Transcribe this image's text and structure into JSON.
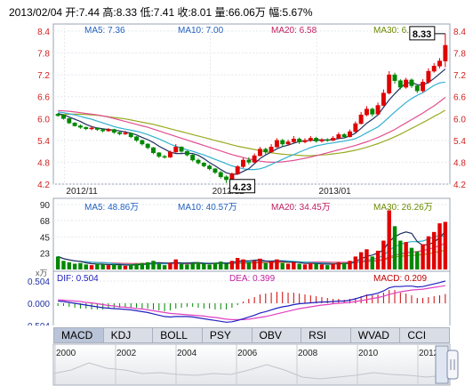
{
  "header": {
    "text": "2013/02/04 开:7.44 高:8.33 低:7.41 收:8.01 量:66.06万 幅:5.67%"
  },
  "price_panel": {
    "ma_labels": [
      {
        "text": "MA5: 7.36",
        "color": "#2060c0"
      },
      {
        "text": "MA10: 7.00",
        "color": "#2060c0"
      },
      {
        "text": "MA20: 6.58",
        "color": "#c02060"
      },
      {
        "text": "MA30: 6.23",
        "color": "#6a8a00"
      }
    ],
    "high_box": "8.33",
    "low_box": "4.23",
    "x_labels": [
      "2012/11",
      "2012/12",
      "2013/01"
    ]
  },
  "volume_panel": {
    "ma_labels": [
      {
        "text": "MA5: 48.86万",
        "color": "#2060c0"
      },
      {
        "text": "MA10: 40.57万",
        "color": "#2060c0"
      },
      {
        "text": "MA20: 34.45万",
        "color": "#c02060"
      },
      {
        "text": "MA30: 26.26万",
        "color": "#6a8a00"
      }
    ],
    "unit": "x万"
  },
  "macd_panel": {
    "dif": "DIF: 0.504",
    "dea": "DEA: 0.399",
    "macd": "MACD: 0.209"
  },
  "tabs": [
    "MACD",
    "KDJ",
    "BOLL",
    "PSY",
    "OBV",
    "RSI",
    "WVAD",
    "CCI"
  ],
  "timeline": {
    "years": [
      "2000",
      "2002",
      "2004",
      "2006",
      "2008",
      "2010",
      "2012"
    ]
  },
  "chart_data": {
    "type": "candlestick",
    "price_axis": {
      "ticks": [
        "4.2",
        "4.8",
        "5.4",
        "6.0",
        "6.6",
        "7.2",
        "7.8",
        "8.4"
      ],
      "ylim": [
        4.2,
        8.4
      ],
      "high_label": "8.33",
      "low_label": "4.23"
    },
    "volume_axis": {
      "ticks": [
        "0",
        "23",
        "45",
        "68",
        "90"
      ],
      "ylim": [
        0,
        90
      ]
    },
    "macd_axis": {
      "ticks": [
        "-0.504",
        "0.000",
        "0.504"
      ],
      "ylim": [
        -0.504,
        0.504
      ]
    },
    "x_labels": [
      "2012/11",
      "2012/12",
      "2013/01"
    ],
    "candles": [
      {
        "o": 6.12,
        "c": 6.08,
        "h": 6.15,
        "l": 6.05
      },
      {
        "o": 6.1,
        "c": 6.0,
        "h": 6.12,
        "l": 5.97
      },
      {
        "o": 6.0,
        "c": 5.88,
        "h": 6.02,
        "l": 5.85
      },
      {
        "o": 5.88,
        "c": 5.8,
        "h": 5.9,
        "l": 5.78
      },
      {
        "o": 5.8,
        "c": 5.76,
        "h": 5.84,
        "l": 5.72
      },
      {
        "o": 5.76,
        "c": 5.72,
        "h": 5.78,
        "l": 5.68
      },
      {
        "o": 5.72,
        "c": 5.74,
        "h": 5.8,
        "l": 5.68
      },
      {
        "o": 5.74,
        "c": 5.7,
        "h": 5.76,
        "l": 5.66
      },
      {
        "o": 5.7,
        "c": 5.66,
        "h": 5.72,
        "l": 5.62
      },
      {
        "o": 5.66,
        "c": 5.7,
        "h": 5.74,
        "l": 5.64
      },
      {
        "o": 5.7,
        "c": 5.62,
        "h": 5.72,
        "l": 5.58
      },
      {
        "o": 5.62,
        "c": 5.58,
        "h": 5.64,
        "l": 5.54
      },
      {
        "o": 5.58,
        "c": 5.6,
        "h": 5.66,
        "l": 5.55
      },
      {
        "o": 5.6,
        "c": 5.5,
        "h": 5.62,
        "l": 5.46
      },
      {
        "o": 5.5,
        "c": 5.4,
        "h": 5.52,
        "l": 5.36
      },
      {
        "o": 5.4,
        "c": 5.3,
        "h": 5.42,
        "l": 5.26
      },
      {
        "o": 5.3,
        "c": 5.2,
        "h": 5.32,
        "l": 5.16
      },
      {
        "o": 5.2,
        "c": 5.06,
        "h": 5.22,
        "l": 5.02
      },
      {
        "o": 5.06,
        "c": 4.96,
        "h": 5.08,
        "l": 4.92
      },
      {
        "o": 4.96,
        "c": 4.94,
        "h": 5.0,
        "l": 4.9
      },
      {
        "o": 4.94,
        "c": 5.08,
        "h": 5.12,
        "l": 4.92
      },
      {
        "o": 5.08,
        "c": 5.22,
        "h": 5.3,
        "l": 5.06
      },
      {
        "o": 5.22,
        "c": 5.1,
        "h": 5.24,
        "l": 5.06
      },
      {
        "o": 5.1,
        "c": 5.0,
        "h": 5.12,
        "l": 4.96
      },
      {
        "o": 5.0,
        "c": 4.86,
        "h": 5.02,
        "l": 4.82
      },
      {
        "o": 4.86,
        "c": 4.78,
        "h": 4.9,
        "l": 4.74
      },
      {
        "o": 4.78,
        "c": 4.7,
        "h": 4.8,
        "l": 4.66
      },
      {
        "o": 4.7,
        "c": 4.62,
        "h": 4.74,
        "l": 4.58
      },
      {
        "o": 4.62,
        "c": 4.52,
        "h": 4.64,
        "l": 4.48
      },
      {
        "o": 4.52,
        "c": 4.4,
        "h": 4.56,
        "l": 4.35
      },
      {
        "o": 4.4,
        "c": 4.32,
        "h": 4.44,
        "l": 4.23
      },
      {
        "o": 4.32,
        "c": 4.48,
        "h": 4.52,
        "l": 4.28
      },
      {
        "o": 4.48,
        "c": 4.68,
        "h": 4.72,
        "l": 4.46
      },
      {
        "o": 4.68,
        "c": 4.86,
        "h": 4.92,
        "l": 4.64
      },
      {
        "o": 4.86,
        "c": 4.8,
        "h": 4.94,
        "l": 4.74
      },
      {
        "o": 4.8,
        "c": 4.98,
        "h": 5.04,
        "l": 4.78
      },
      {
        "o": 4.98,
        "c": 5.16,
        "h": 5.22,
        "l": 4.96
      },
      {
        "o": 5.16,
        "c": 5.08,
        "h": 5.2,
        "l": 5.02
      },
      {
        "o": 5.08,
        "c": 5.22,
        "h": 5.3,
        "l": 5.06
      },
      {
        "o": 5.22,
        "c": 5.4,
        "h": 5.46,
        "l": 5.2
      },
      {
        "o": 5.4,
        "c": 5.3,
        "h": 5.44,
        "l": 5.24
      },
      {
        "o": 5.3,
        "c": 5.36,
        "h": 5.42,
        "l": 5.26
      },
      {
        "o": 5.36,
        "c": 5.44,
        "h": 5.52,
        "l": 5.32
      },
      {
        "o": 5.44,
        "c": 5.36,
        "h": 5.48,
        "l": 5.3
      },
      {
        "o": 5.36,
        "c": 5.4,
        "h": 5.46,
        "l": 5.32
      },
      {
        "o": 5.4,
        "c": 5.46,
        "h": 5.52,
        "l": 5.36
      },
      {
        "o": 5.46,
        "c": 5.38,
        "h": 5.5,
        "l": 5.34
      },
      {
        "o": 5.38,
        "c": 5.42,
        "h": 5.46,
        "l": 5.34
      },
      {
        "o": 5.42,
        "c": 5.4,
        "h": 5.46,
        "l": 5.36
      },
      {
        "o": 5.4,
        "c": 5.46,
        "h": 5.52,
        "l": 5.38
      },
      {
        "o": 5.46,
        "c": 5.56,
        "h": 5.62,
        "l": 5.44
      },
      {
        "o": 5.56,
        "c": 5.5,
        "h": 5.6,
        "l": 5.46
      },
      {
        "o": 5.5,
        "c": 5.64,
        "h": 5.7,
        "l": 5.48
      },
      {
        "o": 5.64,
        "c": 5.86,
        "h": 5.92,
        "l": 5.62
      },
      {
        "o": 5.86,
        "c": 6.1,
        "h": 6.18,
        "l": 5.84
      },
      {
        "o": 6.1,
        "c": 6.26,
        "h": 6.34,
        "l": 6.06
      },
      {
        "o": 6.26,
        "c": 6.12,
        "h": 6.3,
        "l": 6.06
      },
      {
        "o": 6.12,
        "c": 6.36,
        "h": 6.44,
        "l": 6.1
      },
      {
        "o": 6.36,
        "c": 6.7,
        "h": 6.8,
        "l": 6.34
      },
      {
        "o": 6.7,
        "c": 7.2,
        "h": 7.3,
        "l": 6.66
      },
      {
        "o": 7.2,
        "c": 7.04,
        "h": 7.26,
        "l": 6.96
      },
      {
        "o": 7.04,
        "c": 6.86,
        "h": 7.08,
        "l": 6.8
      },
      {
        "o": 6.86,
        "c": 7.06,
        "h": 7.12,
        "l": 6.82
      },
      {
        "o": 7.06,
        "c": 6.9,
        "h": 7.1,
        "l": 6.84
      },
      {
        "o": 6.9,
        "c": 6.76,
        "h": 6.94,
        "l": 6.7
      },
      {
        "o": 6.76,
        "c": 7.0,
        "h": 7.08,
        "l": 6.72
      },
      {
        "o": 7.0,
        "c": 7.3,
        "h": 7.38,
        "l": 6.96
      },
      {
        "o": 7.3,
        "c": 7.44,
        "h": 7.52,
        "l": 7.26
      },
      {
        "o": 7.44,
        "c": 7.58,
        "h": 7.66,
        "l": 7.38
      },
      {
        "o": 7.58,
        "c": 8.01,
        "h": 8.33,
        "l": 7.41
      }
    ],
    "volume": [
      18,
      12,
      10,
      8,
      9,
      7,
      6,
      8,
      7,
      6,
      7,
      6,
      5,
      7,
      8,
      9,
      10,
      12,
      8,
      6,
      9,
      14,
      8,
      7,
      9,
      10,
      8,
      7,
      9,
      11,
      8,
      12,
      16,
      14,
      10,
      12,
      15,
      9,
      11,
      14,
      9,
      8,
      10,
      8,
      7,
      9,
      8,
      7,
      6,
      8,
      10,
      9,
      12,
      18,
      24,
      28,
      18,
      26,
      40,
      82,
      60,
      40,
      38,
      30,
      25,
      35,
      46,
      52,
      64,
      66
    ],
    "ma5": [
      6.14,
      6.1,
      6.04,
      5.98,
      5.92,
      5.84,
      5.78,
      5.74,
      5.72,
      5.7,
      5.68,
      5.66,
      5.63,
      5.6,
      5.55,
      5.48,
      5.42,
      5.34,
      5.24,
      5.16,
      5.08,
      5.04,
      5.04,
      5.05,
      5.04,
      4.99,
      4.9,
      4.79,
      4.7,
      4.6,
      4.51,
      4.47,
      4.47,
      4.55,
      4.62,
      4.76,
      4.9,
      5.0,
      5.08,
      5.17,
      5.23,
      5.27,
      5.32,
      5.37,
      5.39,
      5.4,
      5.41,
      5.41,
      5.41,
      5.42,
      5.45,
      5.47,
      5.52,
      5.6,
      5.73,
      5.87,
      5.98,
      6.1,
      6.31,
      6.51,
      6.68,
      6.84,
      6.97,
      6.99,
      6.93,
      6.92,
      6.99,
      7.1,
      7.23,
      7.36
    ],
    "ma10": [
      6.18,
      6.16,
      6.13,
      6.1,
      6.06,
      6.02,
      5.98,
      5.93,
      5.88,
      5.83,
      5.78,
      5.74,
      5.71,
      5.68,
      5.65,
      5.61,
      5.56,
      5.5,
      5.44,
      5.37,
      5.3,
      5.24,
      5.19,
      5.14,
      5.1,
      5.05,
      5.0,
      4.94,
      4.88,
      4.82,
      4.76,
      4.7,
      4.66,
      4.62,
      4.6,
      4.6,
      4.62,
      4.67,
      4.74,
      4.81,
      4.88,
      4.95,
      5.01,
      5.08,
      5.14,
      5.2,
      5.25,
      5.28,
      5.31,
      5.33,
      5.36,
      5.38,
      5.41,
      5.45,
      5.52,
      5.61,
      5.69,
      5.77,
      5.9,
      6.04,
      6.18,
      6.31,
      6.44,
      6.55,
      6.64,
      6.71,
      6.81,
      6.91,
      6.98,
      7.0
    ],
    "ma20": [
      6.22,
      6.21,
      6.2,
      6.18,
      6.16,
      6.14,
      6.12,
      6.1,
      6.07,
      6.04,
      6.0,
      5.96,
      5.92,
      5.88,
      5.84,
      5.8,
      5.76,
      5.71,
      5.66,
      5.61,
      5.56,
      5.51,
      5.46,
      5.41,
      5.36,
      5.31,
      5.26,
      5.21,
      5.16,
      5.11,
      5.06,
      5.01,
      4.97,
      4.93,
      4.89,
      4.86,
      4.83,
      4.81,
      4.8,
      4.8,
      4.81,
      4.83,
      4.85,
      4.88,
      4.91,
      4.94,
      4.98,
      5.02,
      5.06,
      5.1,
      5.14,
      5.18,
      5.22,
      5.26,
      5.31,
      5.36,
      5.42,
      5.48,
      5.55,
      5.62,
      5.7,
      5.79,
      5.88,
      5.97,
      6.06,
      6.15,
      6.25,
      6.35,
      6.46,
      6.58
    ],
    "ma30": [
      6.1,
      6.11,
      6.12,
      6.12,
      6.12,
      6.11,
      6.1,
      6.09,
      6.07,
      6.05,
      6.03,
      6.01,
      5.99,
      5.96,
      5.93,
      5.9,
      5.87,
      5.84,
      5.8,
      5.76,
      5.72,
      5.68,
      5.64,
      5.6,
      5.56,
      5.52,
      5.48,
      5.44,
      5.4,
      5.36,
      5.32,
      5.28,
      5.24,
      5.21,
      5.18,
      5.15,
      5.12,
      5.09,
      5.06,
      5.04,
      5.02,
      5.01,
      5.0,
      4.99,
      4.98,
      4.98,
      4.99,
      5.0,
      5.01,
      5.03,
      5.05,
      5.07,
      5.1,
      5.13,
      5.17,
      5.21,
      5.26,
      5.31,
      5.37,
      5.43,
      5.5,
      5.57,
      5.65,
      5.73,
      5.81,
      5.89,
      5.97,
      6.06,
      6.14,
      6.23
    ],
    "dif": [
      0.05,
      0.04,
      0.02,
      0.0,
      -0.02,
      -0.04,
      -0.06,
      -0.08,
      -0.1,
      -0.11,
      -0.12,
      -0.13,
      -0.14,
      -0.15,
      -0.17,
      -0.19,
      -0.21,
      -0.24,
      -0.27,
      -0.3,
      -0.31,
      -0.3,
      -0.3,
      -0.3,
      -0.31,
      -0.33,
      -0.35,
      -0.37,
      -0.39,
      -0.41,
      -0.43,
      -0.42,
      -0.39,
      -0.35,
      -0.31,
      -0.27,
      -0.22,
      -0.19,
      -0.15,
      -0.11,
      -0.08,
      -0.06,
      -0.03,
      -0.01,
      0.0,
      0.01,
      0.02,
      0.03,
      0.03,
      0.04,
      0.05,
      0.05,
      0.07,
      0.1,
      0.14,
      0.18,
      0.2,
      0.23,
      0.28,
      0.35,
      0.38,
      0.38,
      0.39,
      0.39,
      0.37,
      0.38,
      0.41,
      0.44,
      0.47,
      0.504
    ],
    "dea": [
      0.08,
      0.07,
      0.06,
      0.05,
      0.04,
      0.02,
      0.01,
      -0.01,
      -0.03,
      -0.05,
      -0.06,
      -0.08,
      -0.09,
      -0.1,
      -0.12,
      -0.13,
      -0.15,
      -0.17,
      -0.19,
      -0.21,
      -0.23,
      -0.24,
      -0.25,
      -0.26,
      -0.27,
      -0.28,
      -0.29,
      -0.31,
      -0.32,
      -0.34,
      -0.36,
      -0.37,
      -0.37,
      -0.37,
      -0.36,
      -0.34,
      -0.32,
      -0.3,
      -0.27,
      -0.24,
      -0.21,
      -0.18,
      -0.15,
      -0.12,
      -0.1,
      -0.08,
      -0.06,
      -0.04,
      -0.03,
      -0.01,
      0.0,
      0.01,
      0.02,
      0.04,
      0.06,
      0.08,
      0.11,
      0.13,
      0.16,
      0.2,
      0.23,
      0.26,
      0.28,
      0.3,
      0.31,
      0.32,
      0.34,
      0.36,
      0.38,
      0.399
    ]
  }
}
